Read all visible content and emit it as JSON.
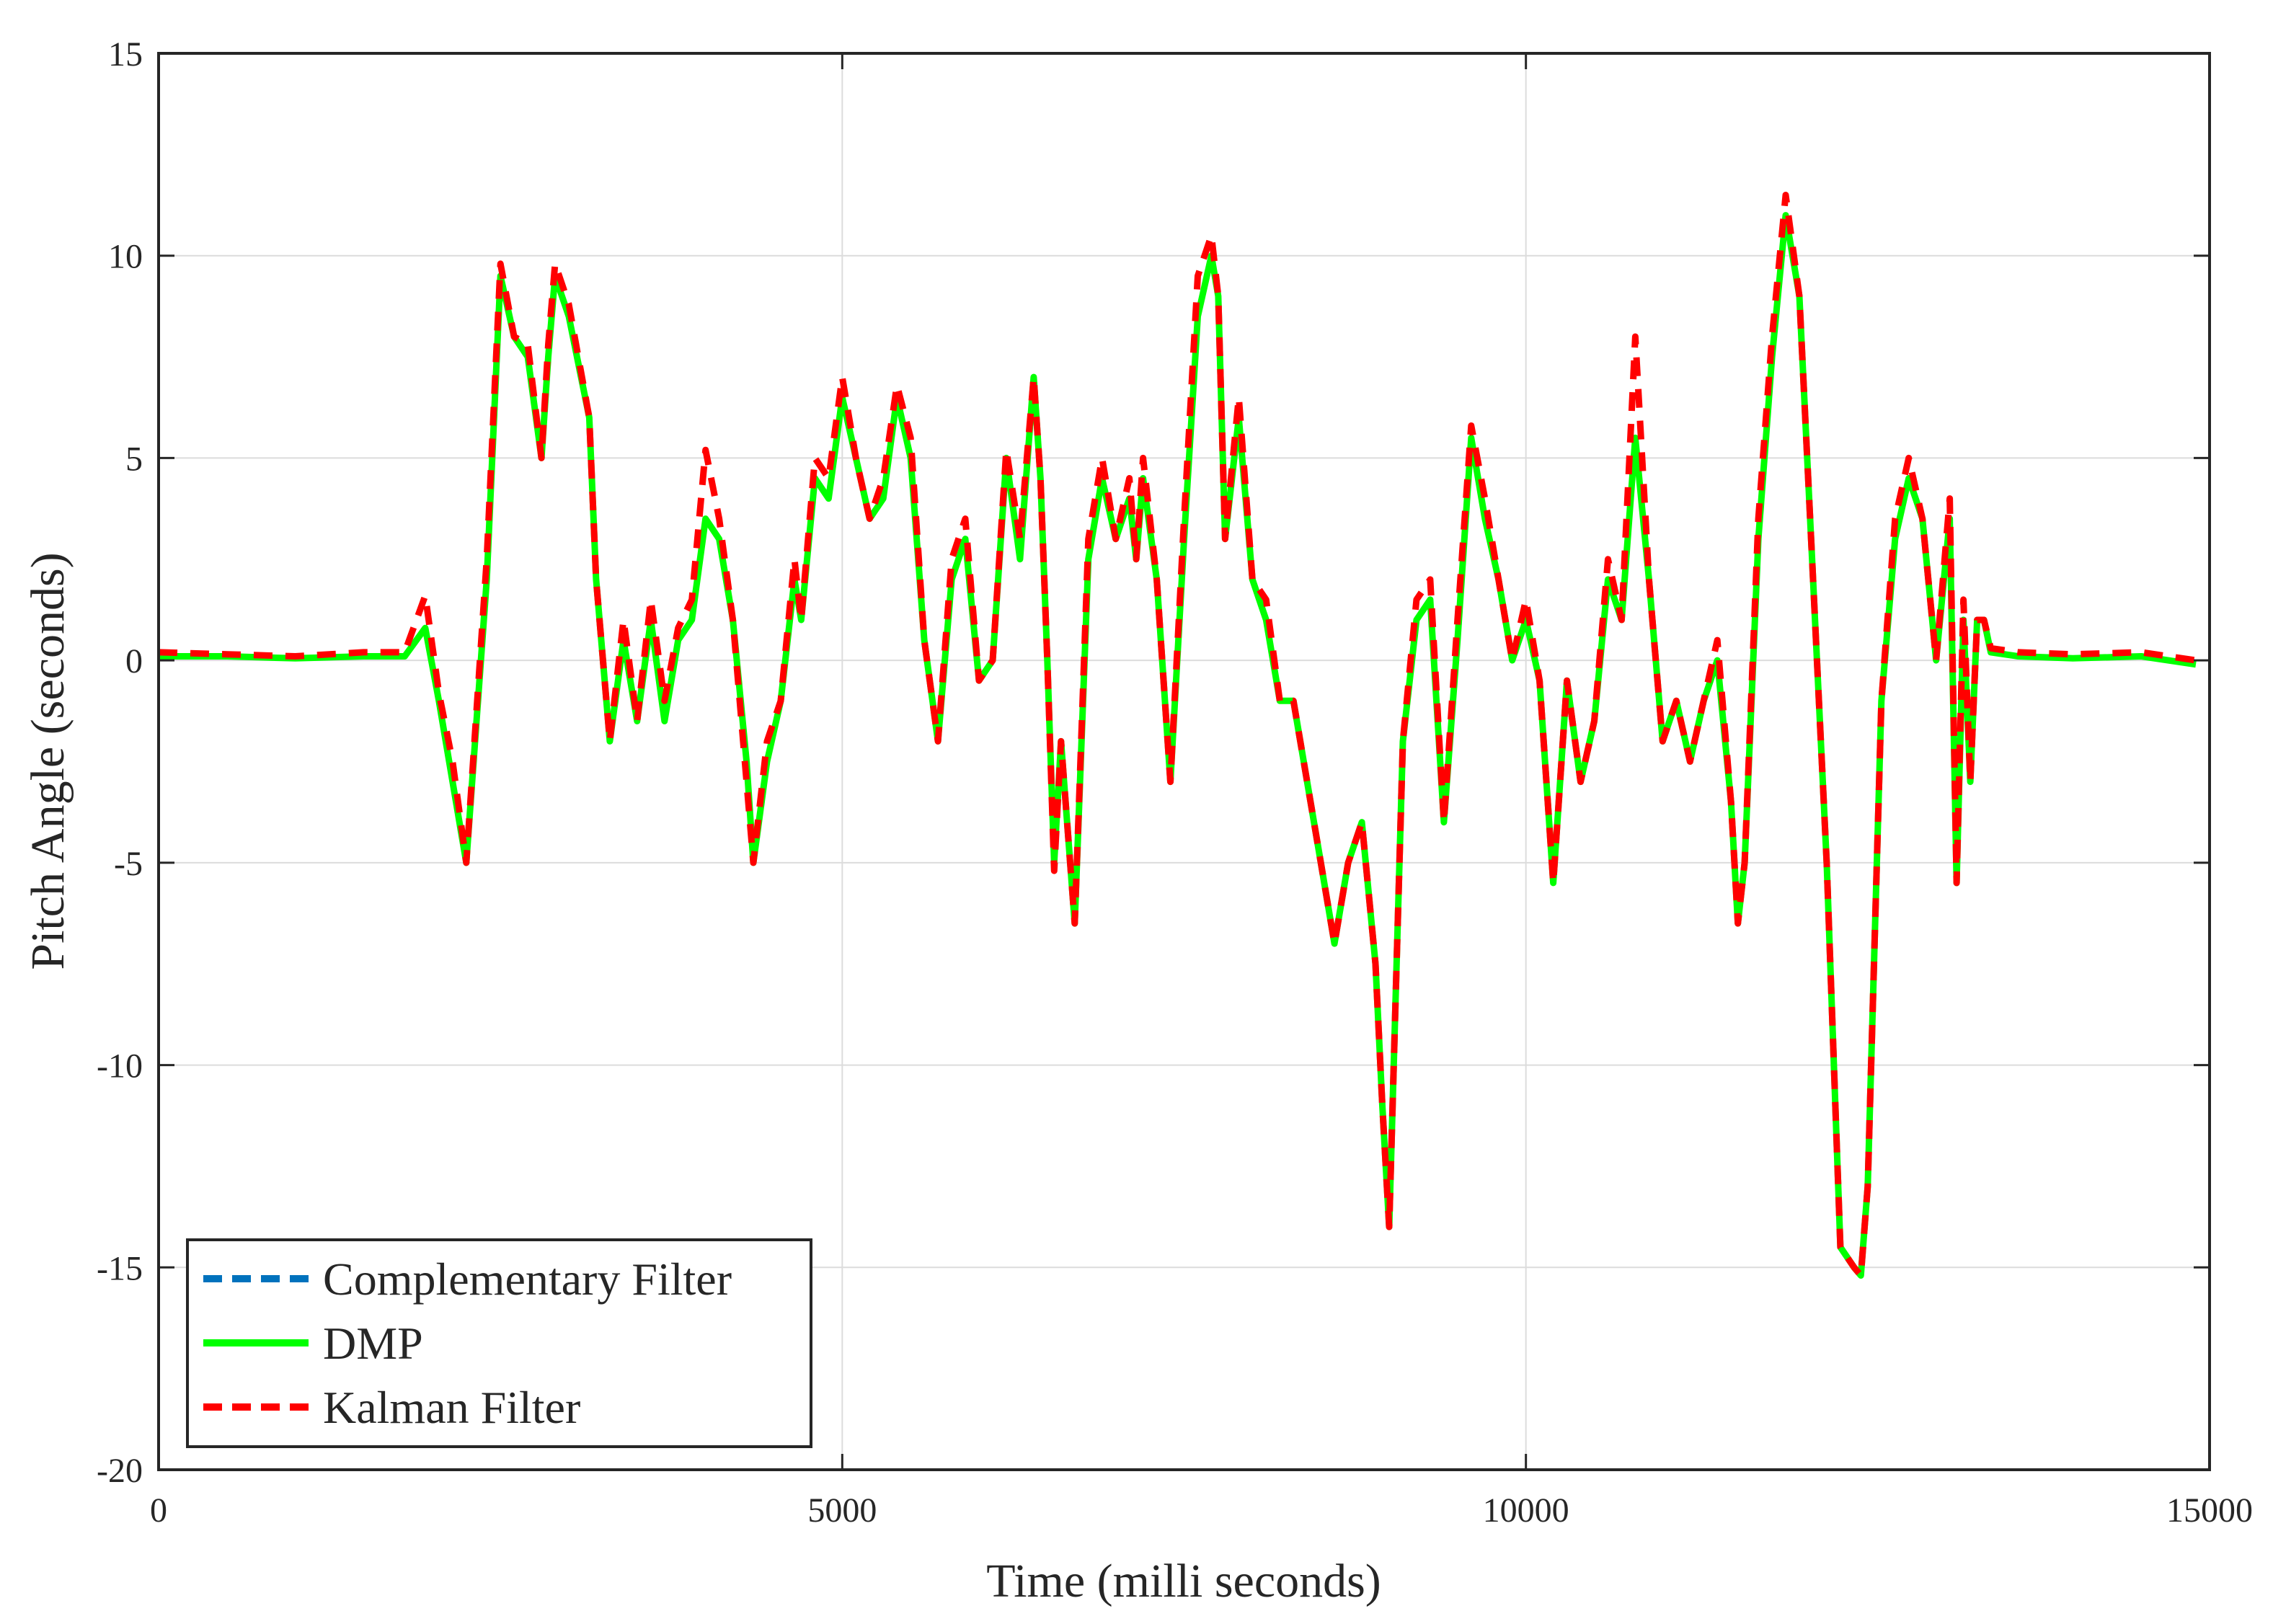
{
  "chart_data": {
    "type": "line",
    "title": "",
    "xlabel": "Time (milli seconds)",
    "ylabel": "Pitch Angle (seconds)",
    "xlim": [
      0,
      15000
    ],
    "ylim": [
      -20,
      15
    ],
    "xticks": [
      0,
      5000,
      10000,
      15000
    ],
    "yticks": [
      -20,
      -15,
      -10,
      -5,
      0,
      5,
      10,
      15
    ],
    "grid": true,
    "legend_position": "bottom-left",
    "series": [
      {
        "name": "Complementary Filter",
        "color": "#0072BD",
        "style": "dashed",
        "x": [
          0,
          500,
          1000,
          1500,
          1800,
          1950,
          2050,
          2150,
          2250,
          2400,
          2500,
          2600,
          2700,
          2800,
          2850,
          2900,
          3000,
          3150,
          3200,
          3300,
          3400,
          3500,
          3600,
          3700,
          3800,
          3900,
          4000,
          4100,
          4200,
          4300,
          4350,
          4450,
          4550,
          4650,
          4700,
          4800,
          4900,
          5000,
          5100,
          5200,
          5300,
          5400,
          5500,
          5600,
          5700,
          5800,
          5900,
          6000,
          6100,
          6200,
          6300,
          6400,
          6450,
          6500,
          6550,
          6600,
          6700,
          6800,
          6900,
          7000,
          7100,
          7150,
          7200,
          7300,
          7400,
          7500,
          7600,
          7700,
          7750,
          7800,
          7900,
          8000,
          8100,
          8200,
          8300,
          8400,
          8500,
          8600,
          8700,
          8800,
          8900,
          8950,
          9000,
          9100,
          9200,
          9300,
          9400,
          9500,
          9600,
          9700,
          9800,
          9900,
          10000,
          10100,
          10150,
          10200,
          10300,
          10400,
          10500,
          10600,
          10700,
          10800,
          10900,
          11000,
          11100,
          11200,
          11300,
          11400,
          11500,
          11550,
          11600,
          11700,
          11800,
          11900,
          12000,
          12100,
          12200,
          12300,
          12400,
          12450,
          12500,
          12600,
          12700,
          12800,
          12900,
          13000,
          13100,
          13150,
          13200,
          13250,
          13300,
          13350,
          13400,
          13600,
          14000,
          14500,
          14900
        ],
        "y": [
          0.1,
          0.1,
          0.05,
          0.1,
          0.1,
          0.8,
          -1.0,
          -3.0,
          -5.0,
          2.0,
          9.5,
          8.0,
          7.5,
          5.0,
          7.5,
          9.5,
          8.5,
          6.0,
          2.0,
          -2.0,
          0.5,
          -1.5,
          1.0,
          -1.5,
          0.5,
          1.0,
          3.5,
          3.0,
          1.0,
          -2.5,
          -5.0,
          -2.5,
          -1.0,
          2.0,
          1.0,
          4.5,
          4.0,
          6.5,
          5.0,
          3.5,
          4.0,
          6.5,
          5.0,
          0.5,
          -2.0,
          2.0,
          3.0,
          -0.5,
          0.0,
          5.0,
          2.5,
          7.0,
          4.5,
          0.0,
          -5.0,
          -2.0,
          -6.5,
          2.5,
          4.5,
          3.0,
          4.0,
          2.5,
          4.5,
          2.0,
          -3.0,
          3.0,
          8.5,
          10.0,
          9.0,
          3.0,
          6.0,
          2.0,
          1.0,
          -1.0,
          -1.0,
          -3.0,
          -5.0,
          -7.0,
          -5.0,
          -4.0,
          -7.5,
          -11.0,
          -14.0,
          -2.0,
          1.0,
          1.5,
          -4.0,
          0.5,
          5.5,
          3.5,
          2.0,
          0.0,
          1.0,
          -0.5,
          -3.0,
          -5.5,
          -0.5,
          -3.0,
          -1.5,
          2.0,
          1.0,
          5.5,
          2.0,
          -2.0,
          -1.0,
          -2.5,
          -1.0,
          0.0,
          -3.5,
          -6.5,
          -5.0,
          3.0,
          7.5,
          11.0,
          9.0,
          2.0,
          -5.0,
          -14.5,
          -15.0,
          -15.2,
          -13.0,
          -1.0,
          3.0,
          4.5,
          3.5,
          0.0,
          3.5,
          -5.5,
          1.0,
          -3.0,
          1.0,
          1.0,
          0.2,
          0.1,
          0.05,
          0.1,
          -0.1
        ]
      },
      {
        "name": "DMP",
        "color": "#00FF00",
        "style": "solid",
        "x": [
          0,
          500,
          1000,
          1500,
          1800,
          1950,
          2050,
          2150,
          2250,
          2400,
          2500,
          2600,
          2700,
          2800,
          2850,
          2900,
          3000,
          3150,
          3200,
          3300,
          3400,
          3500,
          3600,
          3700,
          3800,
          3900,
          4000,
          4100,
          4200,
          4300,
          4350,
          4450,
          4550,
          4650,
          4700,
          4800,
          4900,
          5000,
          5100,
          5200,
          5300,
          5400,
          5500,
          5600,
          5700,
          5800,
          5900,
          6000,
          6100,
          6200,
          6300,
          6400,
          6450,
          6500,
          6550,
          6600,
          6700,
          6800,
          6900,
          7000,
          7100,
          7150,
          7200,
          7300,
          7400,
          7500,
          7600,
          7700,
          7750,
          7800,
          7900,
          8000,
          8100,
          8200,
          8300,
          8400,
          8500,
          8600,
          8700,
          8800,
          8900,
          8950,
          9000,
          9100,
          9200,
          9300,
          9400,
          9500,
          9600,
          9700,
          9800,
          9900,
          10000,
          10100,
          10150,
          10200,
          10300,
          10400,
          10500,
          10600,
          10700,
          10800,
          10900,
          11000,
          11100,
          11200,
          11300,
          11400,
          11500,
          11550,
          11600,
          11700,
          11800,
          11900,
          12000,
          12100,
          12200,
          12300,
          12400,
          12450,
          12500,
          12600,
          12700,
          12800,
          12900,
          13000,
          13100,
          13150,
          13200,
          13250,
          13300,
          13350,
          13400,
          13600,
          14000,
          14500,
          14900
        ],
        "y": [
          0.1,
          0.1,
          0.05,
          0.1,
          0.1,
          0.8,
          -1.0,
          -3.0,
          -5.0,
          2.0,
          9.5,
          8.0,
          7.5,
          5.0,
          7.5,
          9.5,
          8.5,
          6.0,
          2.0,
          -2.0,
          0.5,
          -1.5,
          1.0,
          -1.5,
          0.5,
          1.0,
          3.5,
          3.0,
          1.0,
          -2.5,
          -5.0,
          -2.5,
          -1.0,
          2.0,
          1.0,
          4.5,
          4.0,
          6.5,
          5.0,
          3.5,
          4.0,
          6.5,
          5.0,
          0.5,
          -2.0,
          2.0,
          3.0,
          -0.5,
          0.0,
          5.0,
          2.5,
          7.0,
          4.5,
          0.0,
          -5.0,
          -2.0,
          -6.5,
          2.5,
          4.5,
          3.0,
          4.0,
          2.5,
          4.5,
          2.0,
          -3.0,
          3.0,
          8.5,
          10.0,
          9.0,
          3.0,
          6.0,
          2.0,
          1.0,
          -1.0,
          -1.0,
          -3.0,
          -5.0,
          -7.0,
          -5.0,
          -4.0,
          -7.5,
          -11.0,
          -14.0,
          -2.0,
          1.0,
          1.5,
          -4.0,
          0.5,
          5.5,
          3.5,
          2.0,
          0.0,
          1.0,
          -0.5,
          -3.0,
          -5.5,
          -0.5,
          -3.0,
          -1.5,
          2.0,
          1.0,
          5.5,
          2.0,
          -2.0,
          -1.0,
          -2.5,
          -1.0,
          0.0,
          -3.5,
          -6.5,
          -5.0,
          3.0,
          7.5,
          11.0,
          9.0,
          2.0,
          -5.0,
          -14.5,
          -15.0,
          -15.2,
          -13.0,
          -1.0,
          3.0,
          4.5,
          3.5,
          0.0,
          3.5,
          -5.5,
          1.0,
          -3.0,
          1.0,
          1.0,
          0.2,
          0.1,
          0.05,
          0.1,
          -0.1
        ]
      },
      {
        "name": "Kalman Filter",
        "color": "#FF0000",
        "style": "dashed",
        "x": [
          0,
          500,
          1000,
          1500,
          1800,
          1950,
          2050,
          2150,
          2250,
          2400,
          2500,
          2600,
          2700,
          2800,
          2850,
          2900,
          3000,
          3150,
          3200,
          3300,
          3400,
          3500,
          3600,
          3700,
          3800,
          3900,
          4000,
          4100,
          4200,
          4300,
          4350,
          4450,
          4550,
          4650,
          4700,
          4800,
          4900,
          5000,
          5100,
          5200,
          5300,
          5400,
          5500,
          5600,
          5700,
          5800,
          5900,
          6000,
          6100,
          6200,
          6300,
          6400,
          6450,
          6500,
          6550,
          6600,
          6700,
          6800,
          6900,
          7000,
          7100,
          7150,
          7200,
          7300,
          7400,
          7500,
          7600,
          7700,
          7750,
          7800,
          7900,
          8000,
          8100,
          8200,
          8300,
          8400,
          8500,
          8600,
          8700,
          8800,
          8900,
          8950,
          9000,
          9100,
          9200,
          9300,
          9400,
          9500,
          9600,
          9700,
          9800,
          9900,
          10000,
          10100,
          10150,
          10200,
          10300,
          10400,
          10500,
          10600,
          10700,
          10800,
          10900,
          11000,
          11100,
          11200,
          11300,
          11400,
          11500,
          11550,
          11600,
          11700,
          11800,
          11900,
          12000,
          12100,
          12200,
          12300,
          12400,
          12450,
          12500,
          12600,
          12700,
          12800,
          12900,
          13000,
          13100,
          13150,
          13200,
          13250,
          13300,
          13350,
          13400,
          13600,
          14000,
          14500,
          14900
        ],
        "y": [
          0.2,
          0.15,
          0.1,
          0.2,
          0.2,
          1.6,
          -0.8,
          -2.5,
          -5.0,
          2.5,
          9.8,
          8.0,
          7.8,
          5.0,
          7.8,
          9.8,
          8.8,
          6.0,
          2.0,
          -2.0,
          1.0,
          -1.5,
          1.5,
          -1.0,
          0.8,
          1.5,
          5.2,
          3.5,
          1.0,
          -3.0,
          -5.0,
          -2.0,
          -1.0,
          2.5,
          1.0,
          5.0,
          4.5,
          7.0,
          5.0,
          3.5,
          4.5,
          6.8,
          5.5,
          0.5,
          -2.0,
          2.5,
          3.5,
          -0.5,
          0.0,
          5.2,
          3.0,
          7.0,
          4.5,
          0.0,
          -5.2,
          -2.0,
          -6.5,
          3.0,
          5.0,
          3.0,
          4.5,
          2.5,
          5.0,
          2.0,
          -3.0,
          3.5,
          9.5,
          10.5,
          9.0,
          3.0,
          6.5,
          2.0,
          1.5,
          -1.0,
          -1.0,
          -3.0,
          -5.0,
          -7.0,
          -5.0,
          -4.0,
          -7.5,
          -11.0,
          -14.0,
          -2.0,
          1.5,
          2.0,
          -4.0,
          1.0,
          5.8,
          4.0,
          2.0,
          0.0,
          1.5,
          -0.5,
          -3.0,
          -5.5,
          -0.5,
          -3.0,
          -1.5,
          2.5,
          1.0,
          8.0,
          2.0,
          -2.0,
          -1.0,
          -2.5,
          -1.0,
          0.5,
          -3.5,
          -6.5,
          -5.0,
          3.5,
          8.0,
          11.5,
          9.0,
          2.0,
          -5.0,
          -14.5,
          -15.0,
          -15.2,
          -13.0,
          -1.0,
          3.5,
          5.0,
          3.5,
          0.0,
          4.0,
          -5.5,
          1.5,
          -3.0,
          1.0,
          1.0,
          0.3,
          0.2,
          0.15,
          0.2,
          0.0
        ]
      }
    ]
  }
}
